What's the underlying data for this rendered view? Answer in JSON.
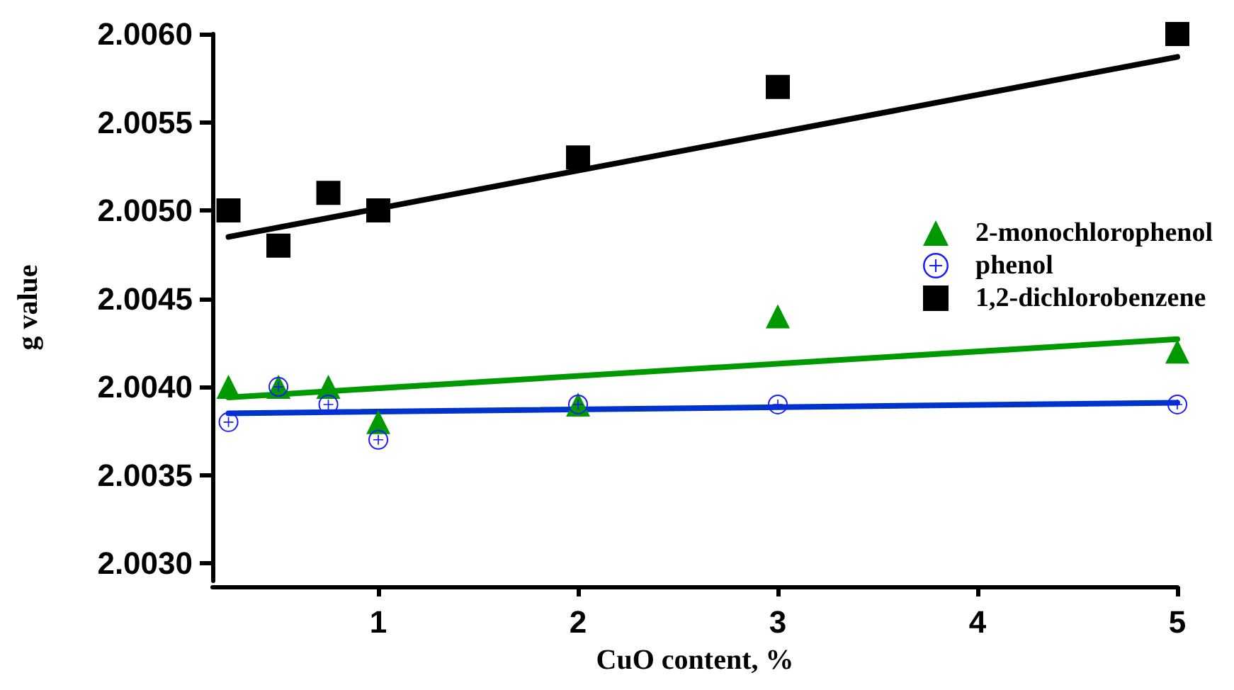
{
  "chart_data": {
    "type": "scatter",
    "xlabel": "CuO content, %",
    "ylabel": "g value",
    "xlim": [
      0.17,
      5
    ],
    "xticks": [
      1,
      2,
      3,
      4,
      5
    ],
    "ylim": [
      2.0029,
      2.006
    ],
    "yticks": [
      {
        "value": 2.003,
        "label": "2.0030"
      },
      {
        "value": 2.0035,
        "label": "2.0035"
      },
      {
        "value": 2.004,
        "label": "2.0040"
      },
      {
        "value": 2.0045,
        "label": "2.0045"
      },
      {
        "value": 2.005,
        "label": "2.0050"
      },
      {
        "value": 2.0055,
        "label": "2.0055"
      },
      {
        "value": 2.006,
        "label": "2.0060"
      }
    ],
    "grid": false,
    "legend": "right",
    "series": [
      {
        "name": "2-monochlorophenol",
        "color": "#009900",
        "marker": "triangle",
        "x": [
          0.25,
          0.5,
          0.75,
          1,
          2,
          3,
          5
        ],
        "values": [
          2.004,
          2.004,
          2.004,
          2.0038,
          2.0039,
          2.0044,
          2.0042
        ]
      },
      {
        "name": "phenol",
        "color": "#1a1aff",
        "marker": "circle",
        "x": [
          0.25,
          0.5,
          0.75,
          1,
          2,
          3,
          5
        ],
        "values": [
          2.0038,
          2.004,
          2.0039,
          2.0037,
          2.0039,
          2.0039,
          2.0039
        ]
      },
      {
        "name": "1,2-dichlorobenzene",
        "color": "#000000",
        "marker": "square",
        "x": [
          0.25,
          0.5,
          0.75,
          1,
          2,
          3,
          5
        ],
        "values": [
          2.005,
          2.0048,
          2.0051,
          2.005,
          2.0053,
          2.0057,
          2.006
        ]
      },
      {
        "type": "line",
        "color": "#009900",
        "marker": "none",
        "x": [
          0.25,
          5
        ],
        "values": [
          2.00394,
          2.00427
        ]
      },
      {
        "type": "line",
        "color": "#0033cc",
        "marker": "none",
        "x": [
          0.25,
          5
        ],
        "values": [
          2.00385,
          2.00391
        ]
      },
      {
        "type": "line",
        "color": "#000000",
        "marker": "none",
        "x": [
          0.25,
          5
        ],
        "values": [
          2.00485,
          2.00587
        ]
      }
    ]
  }
}
